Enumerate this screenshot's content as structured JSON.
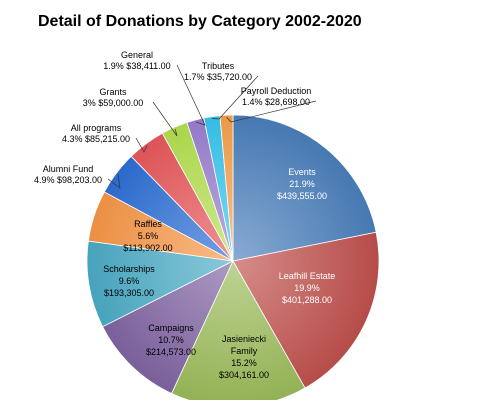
{
  "chart_data": {
    "type": "pie",
    "title": "Detail of Donations by Category 2002-2020",
    "slices": [
      {
        "name": "Events",
        "percent_label": "21.9%",
        "value_label": "$439,555.00",
        "value": 439555.0,
        "color": "#4a7ebb"
      },
      {
        "name": "Leafhill Estate",
        "percent_label": "19.9%",
        "value_label": "$401,288.00",
        "value": 401288.0,
        "color": "#c0504d"
      },
      {
        "name": "Jasieniecki Family",
        "percent_label": "15.2%",
        "value_label": "$304,161.00",
        "value": 304161.0,
        "color": "#9bbb59"
      },
      {
        "name": "Campaigns",
        "percent_label": "10.7%",
        "value_label": "$214,573.00",
        "value": 214573.0,
        "color": "#8064a2"
      },
      {
        "name": "Scholarships",
        "percent_label": "9.6%",
        "value_label": "$193,305.00",
        "value": 193305.0,
        "color": "#4bacc6"
      },
      {
        "name": "Raffles",
        "percent_label": "5.6%",
        "value_label": "$113,902.00",
        "value": 113902.0,
        "color": "#f79646"
      },
      {
        "name": "Alumni Fund",
        "percent_label": "4.9%",
        "value_label": "$98,203.00",
        "value": 98203.0,
        "color": "#2c6fd6"
      },
      {
        "name": "All programs",
        "percent_label": "4.3%",
        "value_label": "$85,215.00",
        "value": 85215.0,
        "color": "#e8575a"
      },
      {
        "name": "Grants",
        "percent_label": "3%",
        "value_label": "$59,000.00",
        "value": 59000.0,
        "color": "#b4e04f"
      },
      {
        "name": "General",
        "percent_label": "1.9%",
        "value_label": "$38,411.00",
        "value": 38411.0,
        "color": "#9b7fd0"
      },
      {
        "name": "Tributes",
        "percent_label": "1.7%",
        "value_label": "$35,720.00",
        "value": 35720.0,
        "color": "#38c6f0"
      },
      {
        "name": "Payroll Deduction",
        "percent_label": "1.4%",
        "value_label": "$28,698.00",
        "value": 28698.0,
        "color": "#f7a04a"
      }
    ]
  }
}
